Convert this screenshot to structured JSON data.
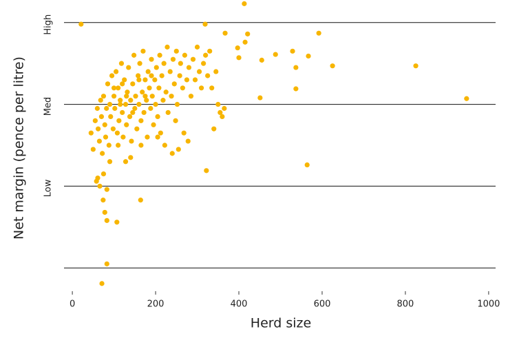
{
  "chart_data": {
    "type": "scatter",
    "x_label": "Herd size",
    "y_label": "Net margin (pence per litre)",
    "color": "#f7b500",
    "xlim": [
      -20,
      1020
    ],
    "xticks": [
      0,
      200,
      400,
      600,
      800,
      1000
    ],
    "ylim": [
      -0.25,
      3.25
    ],
    "yticks": [
      {
        "value": 3,
        "label": "High"
      },
      {
        "value": 2,
        "label": "Med"
      },
      {
        "value": 1,
        "label": "Low"
      }
    ],
    "grid_lines": [
      0,
      1,
      2,
      3
    ],
    "x": [
      413,
      21,
      319,
      421,
      592,
      415,
      367,
      397,
      400,
      455,
      488,
      529,
      537,
      567,
      625,
      825,
      947,
      537,
      451,
      564,
      322,
      164,
      61,
      58,
      66,
      83,
      74,
      78,
      107,
      83,
      83,
      71,
      45,
      50,
      55,
      60,
      62,
      65,
      68,
      70,
      72,
      75,
      78,
      80,
      82,
      85,
      88,
      90,
      92,
      95,
      98,
      100,
      102,
      105,
      108,
      110,
      112,
      115,
      118,
      120,
      122,
      125,
      128,
      130,
      132,
      135,
      138,
      140,
      142,
      145,
      148,
      150,
      152,
      155,
      158,
      160,
      162,
      165,
      168,
      170,
      172,
      175,
      178,
      180,
      182,
      185,
      188,
      190,
      192,
      195,
      198,
      200,
      202,
      205,
      208,
      210,
      212,
      215,
      218,
      220,
      222,
      225,
      228,
      230,
      235,
      238,
      240,
      242,
      245,
      248,
      250,
      252,
      255,
      258,
      260,
      265,
      268,
      270,
      275,
      278,
      280,
      285,
      290,
      295,
      300,
      305,
      310,
      315,
      320,
      325,
      330,
      335,
      340,
      345,
      350,
      355,
      360,
      365,
      128,
      140,
      110,
      90,
      75,
      165,
      205,
      100,
      130,
      160,
      115,
      145,
      175,
      190,
      120
    ],
    "values": [
      3.23,
      2.98,
      2.98,
      2.86,
      2.87,
      2.76,
      2.87,
      2.69,
      2.57,
      2.54,
      2.61,
      2.65,
      2.45,
      2.59,
      2.47,
      2.47,
      2.07,
      2.19,
      2.08,
      1.26,
      1.19,
      0.83,
      1.1,
      1.06,
      1.0,
      0.96,
      0.83,
      0.68,
      0.56,
      0.58,
      0.05,
      -0.19,
      1.65,
      1.45,
      1.8,
      1.95,
      1.7,
      1.55,
      2.05,
      1.85,
      1.4,
      2.1,
      1.75,
      1.6,
      1.95,
      2.25,
      1.5,
      2.0,
      1.85,
      2.35,
      1.7,
      2.1,
      1.95,
      2.4,
      1.65,
      2.2,
      1.8,
      2.05,
      2.5,
      1.9,
      1.6,
      2.3,
      2.0,
      1.75,
      2.15,
      2.45,
      1.85,
      2.05,
      1.55,
      2.25,
      2.6,
      1.95,
      2.1,
      1.7,
      2.35,
      2.0,
      2.5,
      1.8,
      2.15,
      2.65,
      1.9,
      2.3,
      2.05,
      1.6,
      2.4,
      2.2,
      1.95,
      2.55,
      2.1,
      1.75,
      2.3,
      2.0,
      2.45,
      1.85,
      2.2,
      2.6,
      1.65,
      2.35,
      2.05,
      2.5,
      1.5,
      2.15,
      2.7,
      1.9,
      2.4,
      2.1,
      1.4,
      2.55,
      2.25,
      1.8,
      2.65,
      2.0,
      1.45,
      2.35,
      2.5,
      2.2,
      1.65,
      2.6,
      2.3,
      1.55,
      2.45,
      2.1,
      2.55,
      2.3,
      2.7,
      2.4,
      2.2,
      2.5,
      2.6,
      2.35,
      2.65,
      2.2,
      1.7,
      2.4,
      2.0,
      1.9,
      1.85,
      1.95,
      1.3,
      1.35,
      1.5,
      1.3,
      1.15,
      1.5,
      1.6,
      2.2,
      2.1,
      2.3,
      2.0,
      1.9,
      2.1,
      2.35,
      2.25
    ]
  }
}
